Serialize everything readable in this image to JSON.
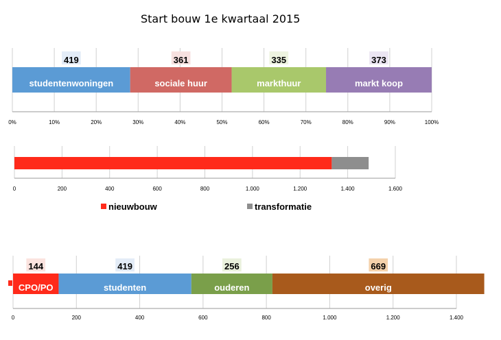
{
  "title": "Start bouw 1e kwartaal 2015",
  "chart_data": [
    {
      "type": "bar",
      "orientation": "horizontal",
      "stacked": true,
      "xlim": [
        0,
        100
      ],
      "unit": "%",
      "tick_labels": [
        "0%",
        "10%",
        "20%",
        "30%",
        "40%",
        "50%",
        "60%",
        "70%",
        "80%",
        "90%",
        "100%"
      ],
      "grid": true,
      "series": [
        {
          "name": "studentenwoningen",
          "value": 419,
          "percent": 28.1,
          "color": "#5b9bd5",
          "badge": "#e3ecf7"
        },
        {
          "name": "sociale huur",
          "value": 361,
          "percent": 24.2,
          "color": "#d06964",
          "badge": "#f6e0df"
        },
        {
          "name": "markthuur",
          "value": 335,
          "percent": 22.5,
          "color": "#a9c86b",
          "badge": "#eef4e0"
        },
        {
          "name": "markt koop",
          "value": 373,
          "percent": 25.2,
          "color": "#977cb4",
          "badge": "#ebe5f2"
        }
      ]
    },
    {
      "type": "bar",
      "orientation": "horizontal",
      "stacked": true,
      "xlim": [
        0,
        1600
      ],
      "tick_labels": [
        "0",
        "200",
        "400",
        "600",
        "800",
        "1.000",
        "1.200",
        "1.400",
        "1.600"
      ],
      "grid": true,
      "legend_position": "bottom",
      "series": [
        {
          "name": "nieuwbouw",
          "value": 1333,
          "color": "#ff2a1a"
        },
        {
          "name": "transformatie",
          "value": 155,
          "color": "#8e8e8e"
        }
      ]
    },
    {
      "type": "bar",
      "orientation": "horizontal",
      "stacked": true,
      "xlim": [
        0,
        1400
      ],
      "tick_labels": [
        "0",
        "200",
        "400",
        "600",
        "800",
        "1.000",
        "1.200",
        "1.400"
      ],
      "grid": true,
      "series": [
        {
          "name": "CPO/PO",
          "value": 144,
          "color": "#ff2a1a",
          "badge": "#fbe3df"
        },
        {
          "name": "studenten",
          "value": 419,
          "color": "#5b9bd5",
          "badge": "#e3ecf7"
        },
        {
          "name": "ouderen",
          "value": 256,
          "color": "#7a9f4a",
          "badge": "#eaf1dd"
        },
        {
          "name": "overig",
          "value": 669,
          "color": "#a85a1c",
          "badge": "#f4d1ab"
        }
      ]
    }
  ]
}
